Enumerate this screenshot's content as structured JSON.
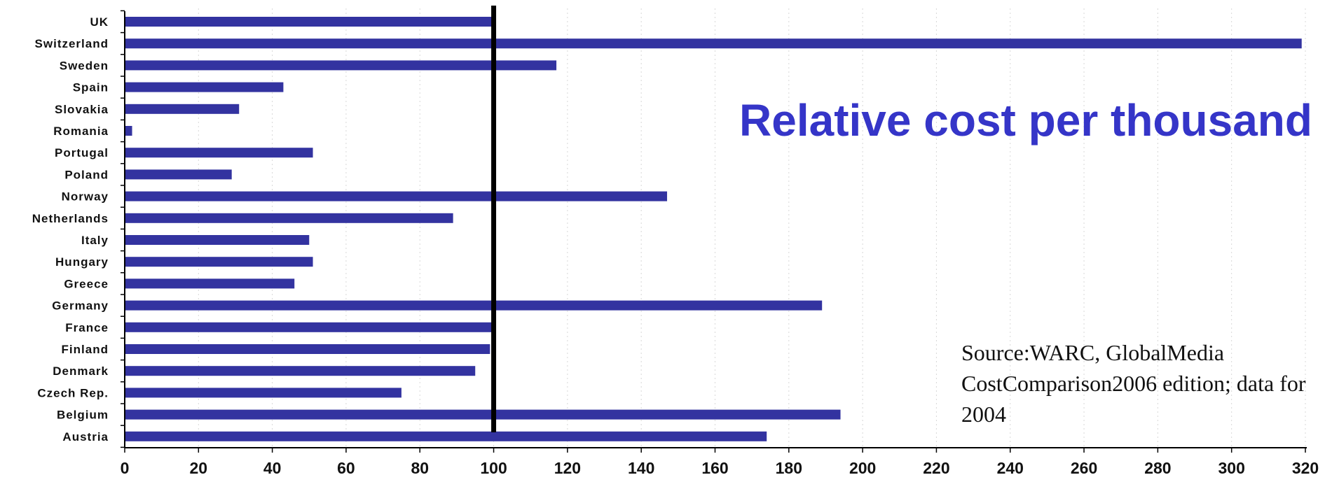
{
  "chart_data": {
    "type": "bar",
    "orientation": "horizontal",
    "title": "Relative cost per thousand",
    "note": "Source:WARC, GlobalMedia CostComparison2006 edition; data for 2004",
    "categories": [
      "UK",
      "Switzerland",
      "Sweden",
      "Spain",
      "Slovakia",
      "Romania",
      "Portugal",
      "Poland",
      "Norway",
      "Netherlands",
      "Italy",
      "Hungary",
      "Greece",
      "Germany",
      "France",
      "Finland",
      "Denmark",
      "Czech Rep.",
      "Belgium",
      "Austria"
    ],
    "values": [
      100,
      319,
      117,
      43,
      31,
      2,
      51,
      29,
      147,
      89,
      50,
      51,
      46,
      189,
      100,
      99,
      95,
      75,
      194,
      174
    ],
    "xlim": [
      0,
      320
    ],
    "xticks": [
      "0",
      "20",
      "40",
      "60",
      "80",
      "100",
      "120",
      "140",
      "160",
      "180",
      "200",
      "220",
      "240",
      "260",
      "280",
      "300",
      "320"
    ],
    "reference_line": 100,
    "grid": "vertical dotted",
    "xlabel": "",
    "ylabel": "",
    "colors": {
      "bar": "#3333a0",
      "reference": "#000000",
      "title": "#3535c8"
    }
  }
}
